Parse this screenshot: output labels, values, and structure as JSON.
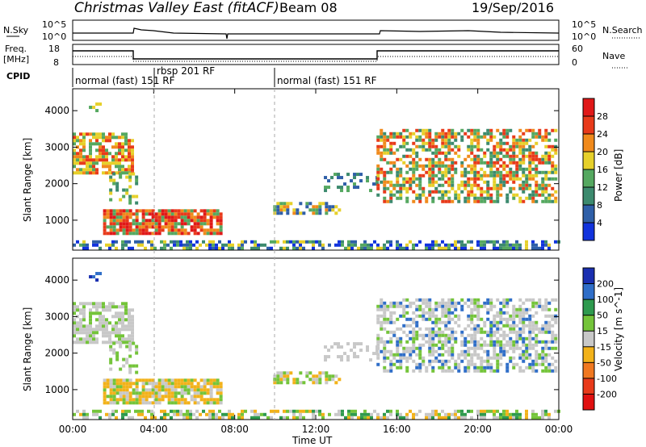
{
  "header": {
    "title": "Christmas Valley East (fitACF)",
    "beam": "Beam 08",
    "date": "19/Sep/2016"
  },
  "panels": {
    "nsky_label": "N.Sky",
    "nsearch_label": "N.Search",
    "freq_label_top": "Freq.",
    "freq_label_unit": "[MHz]",
    "nave_label": "Nave",
    "cpid_label": "CPID",
    "nsky_ticks": [
      "10^5",
      "10^0"
    ],
    "nsearch_ticks": [
      "10^5",
      "10^0"
    ],
    "freq_ticks": [
      "18",
      "8"
    ],
    "nave_ticks": [
      "60",
      "0"
    ],
    "cpid_entries": [
      {
        "text": "normal (fast) 151 RF",
        "start_hour": 0
      },
      {
        "text": "rbsp 201 RF",
        "start_hour": 3.9
      },
      {
        "text": "normal (fast) 151 RF",
        "start_hour": 9.9
      }
    ]
  },
  "chart_data": [
    {
      "type": "heatmap",
      "quantity": "Power",
      "ylabel": "Slant Range [km]",
      "xlabel": "",
      "xlim_hours": [
        0,
        24
      ],
      "ylim": [
        180,
        4600
      ],
      "yticks": [
        "1000",
        "2000",
        "3000",
        "4000"
      ],
      "colorbar": {
        "label": "Power [dB]",
        "ticks": [
          "4",
          "8",
          "12",
          "16",
          "20",
          "24",
          "28"
        ],
        "colors": [
          "#1133dd",
          "#2f5fa8",
          "#3c8a6e",
          "#55a860",
          "#e6d02a",
          "#f08a1c",
          "#e83a1a",
          "#e01818"
        ]
      }
    },
    {
      "type": "heatmap",
      "quantity": "Velocity",
      "ylabel": "Slant Range [km]",
      "xlabel": "Time UT",
      "xlim_hours": [
        0,
        24
      ],
      "ylim": [
        180,
        4600
      ],
      "yticks": [
        "1000",
        "2000",
        "3000",
        "4000"
      ],
      "xticks": [
        "00:00",
        "04:00",
        "08:00",
        "12:00",
        "16:00",
        "20:00",
        "00:00"
      ],
      "colorbar": {
        "label": "Velocity [m s^-1]",
        "ticks": [
          "200",
          "100",
          "50",
          "15",
          "-15",
          "-50",
          "-100",
          "-200"
        ],
        "colors": [
          "#1a2fb0",
          "#2f6ec8",
          "#2e9a4e",
          "#74c43a",
          "#c8c8c8",
          "#f2b21a",
          "#f07820",
          "#e83a1a",
          "#e01010"
        ]
      }
    }
  ]
}
